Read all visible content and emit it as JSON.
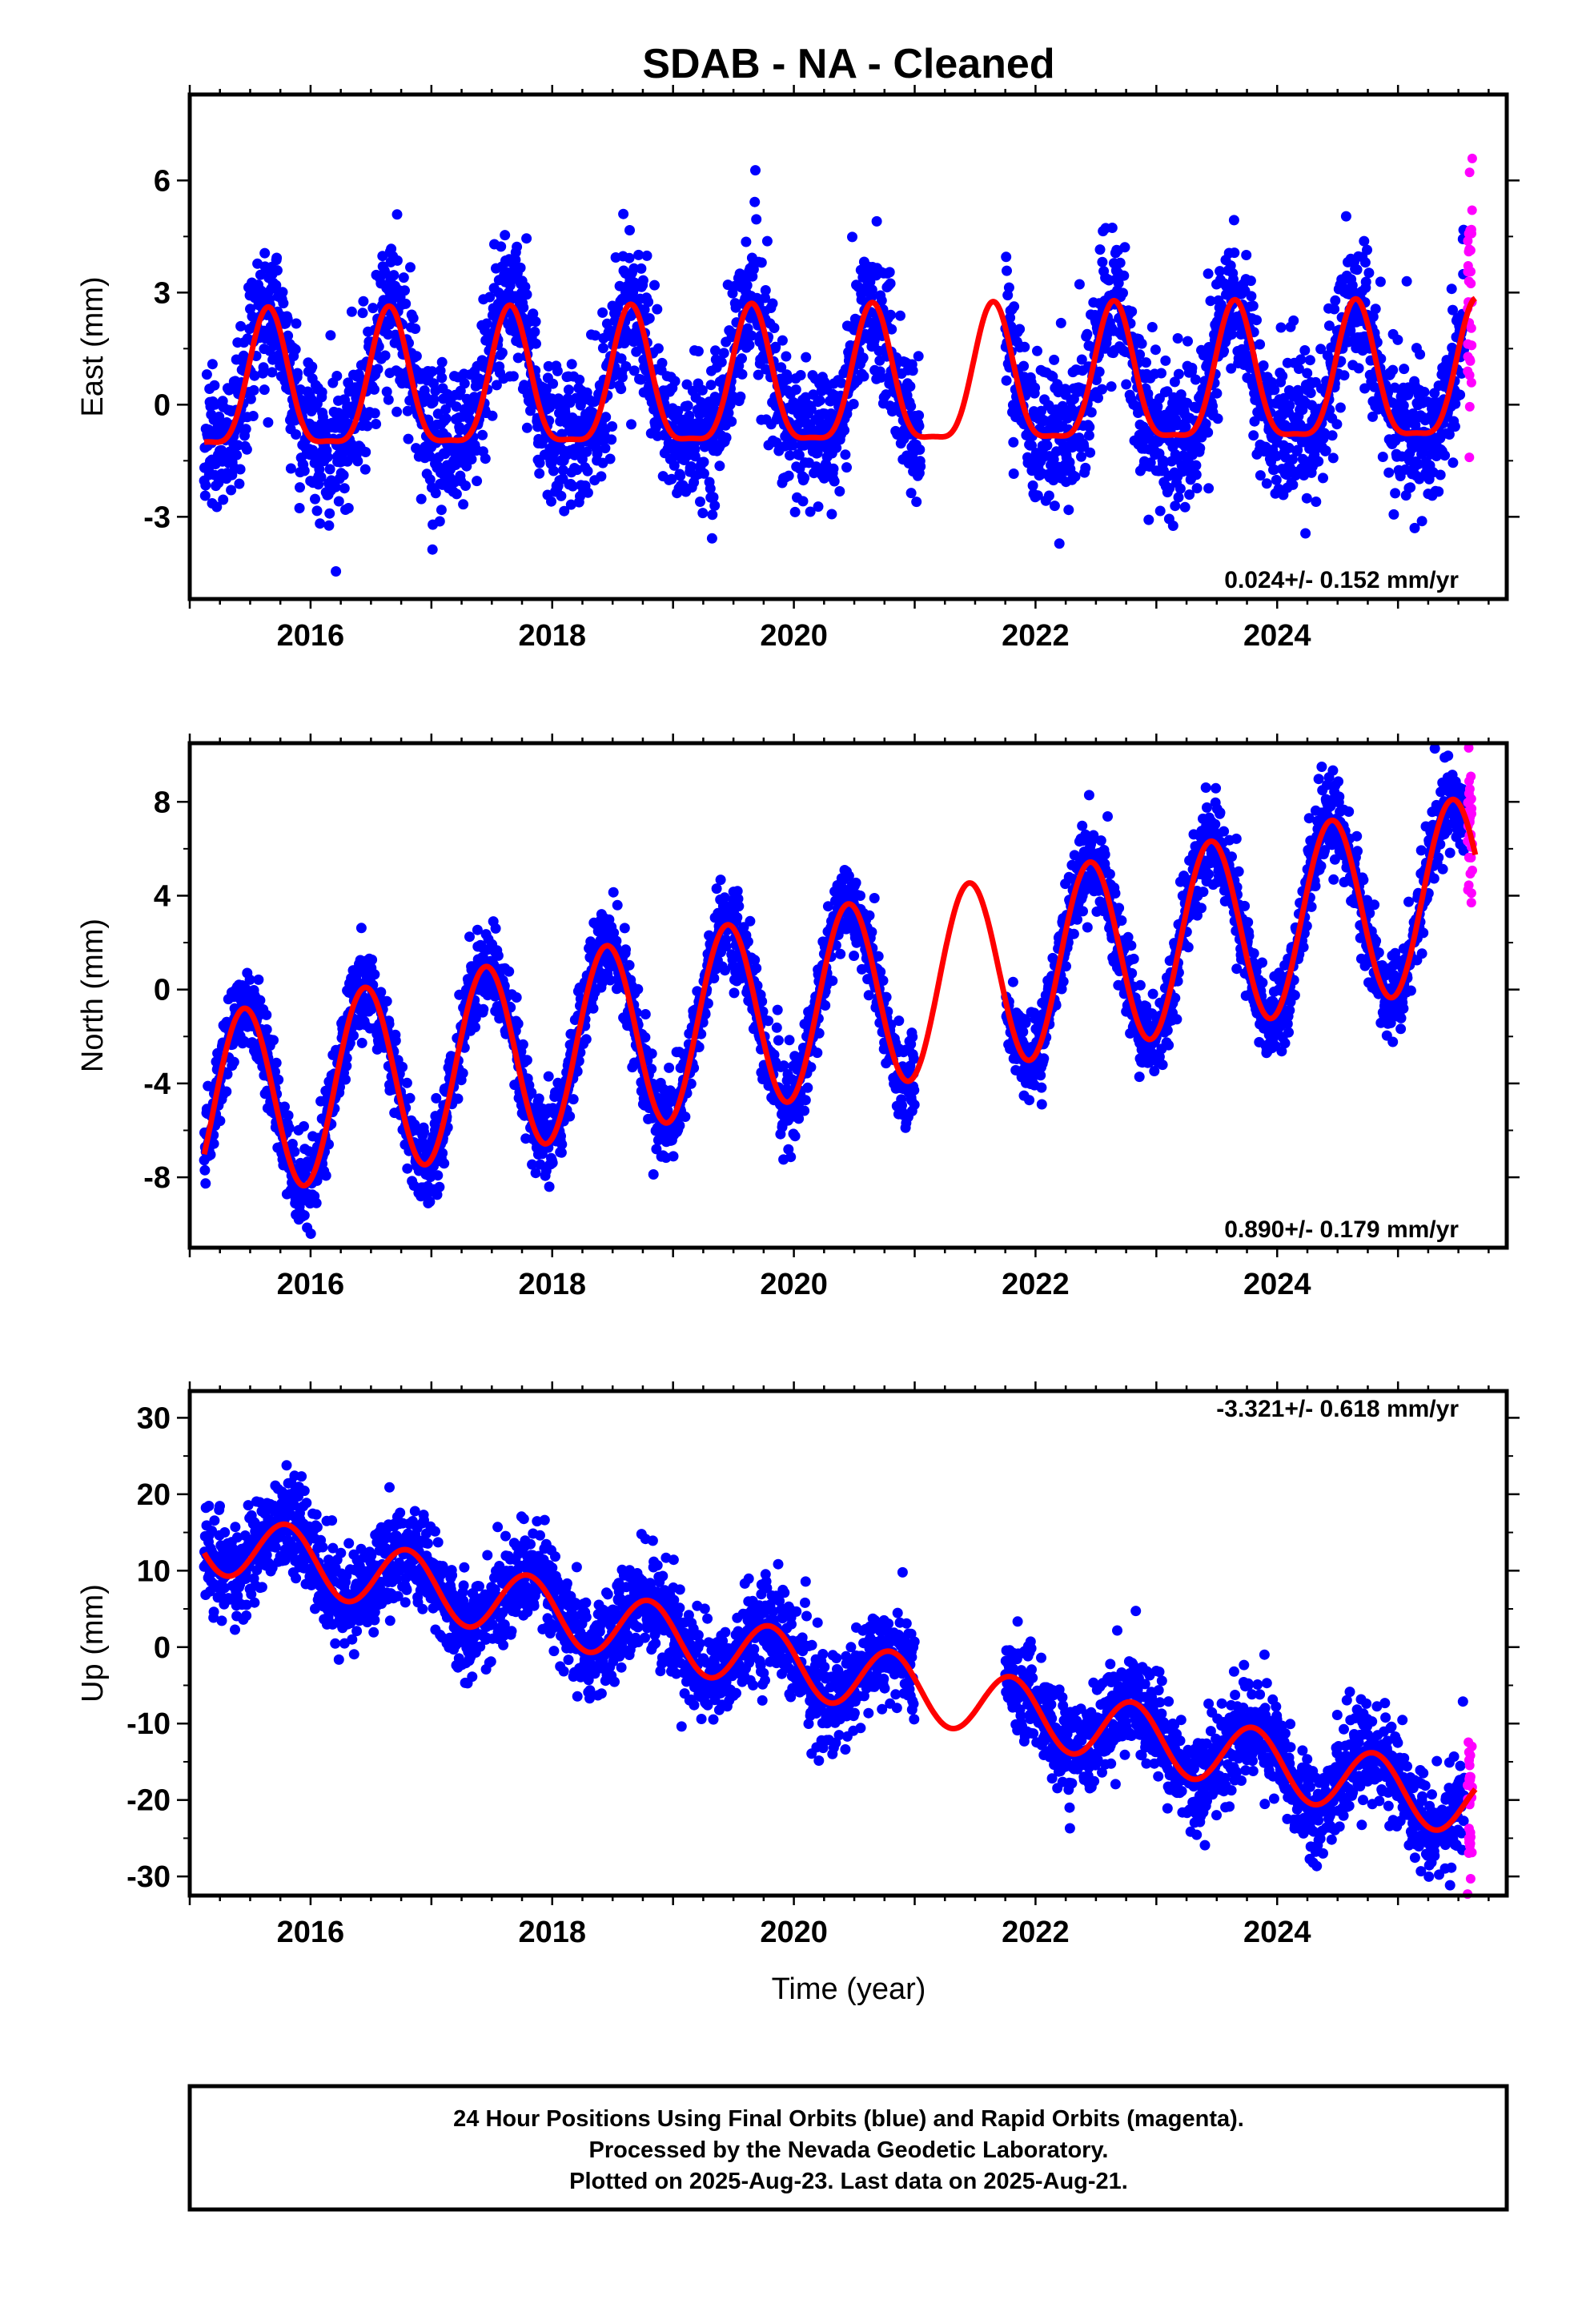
{
  "title": "SDAB  - NA - Cleaned",
  "footer": {
    "line1": "24 Hour Positions Using Final Orbits (blue) and Rapid Orbits (magenta).",
    "line2": "Processed by the Nevada Geodetic Laboratory.",
    "line3": "Plotted on 2025-Aug-23. Last data on 2025-Aug-21."
  },
  "colors": {
    "final": "#0000ff",
    "rapid": "#ff00ff",
    "model": "#ff0000",
    "frame": "#000000"
  },
  "chart_data": [
    {
      "type": "scatter",
      "component": "east",
      "ylabel": "East (mm)",
      "xlabel": "",
      "xlim": [
        2015.0,
        2025.9
      ],
      "ylim": [
        -5.2,
        8.3
      ],
      "yticks": [
        -3,
        0,
        3,
        6
      ],
      "xticks": [
        2016,
        2018,
        2020,
        2022,
        2024
      ],
      "x_tick_labels": [
        "2016",
        "2018",
        "2020",
        "2022",
        "2024"
      ],
      "y_tick_labels": [
        "-3",
        "0",
        "3",
        "6"
      ],
      "rate_label": "0.024+/- 0.152 mm/yr",
      "model": {
        "trend_mm_per_yr": 0.024,
        "offset_mm": 0.3,
        "amp_annual": 1.8,
        "peak_phase": 0.65,
        "amp_semi": 0.5
      },
      "noise_mm": 0.95,
      "data_gap": [
        2021.05,
        2021.75
      ],
      "series": [
        {
          "name": "Final Orbits (blue)",
          "x_range": [
            2015.12,
            2025.55
          ]
        },
        {
          "name": "Rapid Orbits (magenta)",
          "x_range": [
            2025.55,
            2025.64
          ]
        }
      ]
    },
    {
      "type": "scatter",
      "component": "north",
      "ylabel": "North (mm)",
      "xlabel": "",
      "xlim": [
        2015.0,
        2025.9
      ],
      "ylim": [
        -11.0,
        10.5
      ],
      "yticks": [
        -8,
        -4,
        0,
        4,
        8
      ],
      "xticks": [
        2016,
        2018,
        2020,
        2022,
        2024
      ],
      "x_tick_labels": [
        "2016",
        "2018",
        "2020",
        "2022",
        "2024"
      ],
      "y_tick_labels": [
        "-8",
        "-4",
        "0",
        "4",
        "8"
      ],
      "rate_label": "0.890+/- 0.179 mm/yr",
      "model": {
        "trend_mm_per_yr": 0.89,
        "offset_mm": -5.2,
        "amp_annual": 4.0,
        "peak_phase": 0.45,
        "amp_semi": 0.0
      },
      "noise_mm": 0.9,
      "data_gap": [
        2021.0,
        2021.75
      ],
      "series": [
        {
          "name": "Final Orbits (blue)",
          "x_range": [
            2015.12,
            2025.55
          ]
        },
        {
          "name": "Rapid Orbits (magenta)",
          "x_range": [
            2025.55,
            2025.64
          ]
        }
      ]
    },
    {
      "type": "scatter",
      "component": "up",
      "ylabel": "Up (mm)",
      "xlabel": "Time (year)",
      "xlim": [
        2015.0,
        2025.9
      ],
      "ylim": [
        -32.5,
        33.5
      ],
      "yticks": [
        -30,
        -20,
        -10,
        0,
        10,
        20,
        30
      ],
      "xticks": [
        2016,
        2018,
        2020,
        2022,
        2024
      ],
      "x_tick_labels": [
        "2016",
        "2018",
        "2020",
        "2022",
        "2024"
      ],
      "y_tick_labels": [
        "-30",
        "-20",
        "-10",
        "0",
        "10",
        "20",
        "30"
      ],
      "rate_label": "-3.321+/- 0.618 mm/yr",
      "model": {
        "trend_mm_per_yr": -3.321,
        "offset_mm": 14.5,
        "amp_annual": 4.2,
        "peak_phase": 0.8,
        "amp_semi": 0.0
      },
      "noise_mm": 3.2,
      "data_gap": [
        2021.0,
        2021.75
      ],
      "series": [
        {
          "name": "Final Orbits (blue)",
          "x_range": [
            2015.12,
            2025.55
          ]
        },
        {
          "name": "Rapid Orbits (magenta)",
          "x_range": [
            2025.55,
            2025.64
          ]
        }
      ]
    }
  ]
}
